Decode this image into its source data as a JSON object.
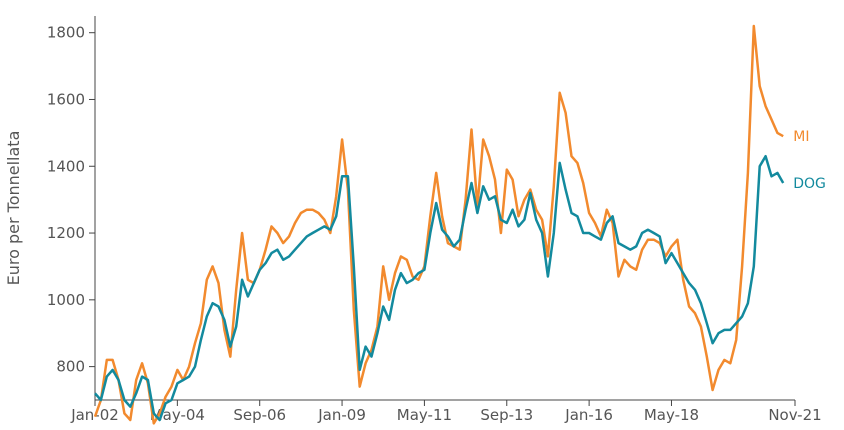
{
  "chart_data": {
    "type": "line",
    "title": "",
    "xlabel": "",
    "ylabel": "Euro per Tonnellata",
    "xlim": [
      "2002-01",
      "2021-11"
    ],
    "ylim": [
      700,
      1850
    ],
    "yticks": [
      800,
      1000,
      1200,
      1400,
      1600,
      1800
    ],
    "xticks": [
      {
        "date": "2002-01",
        "label": "Jan-02"
      },
      {
        "date": "2004-05",
        "label": "May-04"
      },
      {
        "date": "2006-09",
        "label": "Sep-06"
      },
      {
        "date": "2009-01",
        "label": "Jan-09"
      },
      {
        "date": "2011-05",
        "label": "May-11"
      },
      {
        "date": "2013-09",
        "label": "Sep-13"
      },
      {
        "date": "2016-01",
        "label": "Jan-16"
      },
      {
        "date": "2018-05",
        "label": "May-18"
      },
      {
        "date": "2021-11",
        "label": "Nov-21"
      }
    ],
    "grid": false,
    "legend": "direct labels at right end of lines",
    "colors": {
      "MI": "#F28A2E",
      "DOG": "#138A9E"
    },
    "series": [
      {
        "name": "MI",
        "color": "#F28A2E",
        "points": [
          [
            "2002-01",
            650
          ],
          [
            "2002-03",
            700
          ],
          [
            "2002-05",
            820
          ],
          [
            "2002-07",
            820
          ],
          [
            "2002-09",
            760
          ],
          [
            "2002-11",
            660
          ],
          [
            "2003-01",
            640
          ],
          [
            "2003-03",
            760
          ],
          [
            "2003-05",
            810
          ],
          [
            "2003-07",
            750
          ],
          [
            "2003-09",
            630
          ],
          [
            "2003-11",
            660
          ],
          [
            "2004-01",
            710
          ],
          [
            "2004-03",
            740
          ],
          [
            "2004-05",
            790
          ],
          [
            "2004-07",
            760
          ],
          [
            "2004-09",
            800
          ],
          [
            "2004-11",
            870
          ],
          [
            "2005-01",
            930
          ],
          [
            "2005-03",
            1060
          ],
          [
            "2005-05",
            1100
          ],
          [
            "2005-07",
            1050
          ],
          [
            "2005-09",
            910
          ],
          [
            "2005-11",
            830
          ],
          [
            "2006-01",
            1030
          ],
          [
            "2006-03",
            1200
          ],
          [
            "2006-05",
            1060
          ],
          [
            "2006-07",
            1050
          ],
          [
            "2006-09",
            1090
          ],
          [
            "2006-11",
            1150
          ],
          [
            "2007-01",
            1220
          ],
          [
            "2007-03",
            1200
          ],
          [
            "2007-05",
            1170
          ],
          [
            "2007-07",
            1190
          ],
          [
            "2007-09",
            1230
          ],
          [
            "2007-11",
            1260
          ],
          [
            "2008-01",
            1270
          ],
          [
            "2008-03",
            1270
          ],
          [
            "2008-05",
            1260
          ],
          [
            "2008-07",
            1240
          ],
          [
            "2008-09",
            1200
          ],
          [
            "2008-11",
            1310
          ],
          [
            "2009-01",
            1480
          ],
          [
            "2009-03",
            1330
          ],
          [
            "2009-05",
            970
          ],
          [
            "2009-07",
            740
          ],
          [
            "2009-09",
            810
          ],
          [
            "2009-11",
            850
          ],
          [
            "2010-01",
            920
          ],
          [
            "2010-03",
            1100
          ],
          [
            "2010-05",
            1000
          ],
          [
            "2010-07",
            1080
          ],
          [
            "2010-09",
            1130
          ],
          [
            "2010-11",
            1120
          ],
          [
            "2011-01",
            1070
          ],
          [
            "2011-03",
            1060
          ],
          [
            "2011-05",
            1100
          ],
          [
            "2011-07",
            1250
          ],
          [
            "2011-09",
            1380
          ],
          [
            "2011-11",
            1250
          ],
          [
            "2012-01",
            1170
          ],
          [
            "2012-03",
            1160
          ],
          [
            "2012-05",
            1150
          ],
          [
            "2012-07",
            1300
          ],
          [
            "2012-09",
            1510
          ],
          [
            "2012-11",
            1280
          ],
          [
            "2013-01",
            1480
          ],
          [
            "2013-03",
            1430
          ],
          [
            "2013-05",
            1360
          ],
          [
            "2013-07",
            1200
          ],
          [
            "2013-09",
            1390
          ],
          [
            "2013-11",
            1360
          ],
          [
            "2014-01",
            1250
          ],
          [
            "2014-03",
            1300
          ],
          [
            "2014-05",
            1330
          ],
          [
            "2014-07",
            1270
          ],
          [
            "2014-09",
            1240
          ],
          [
            "2014-11",
            1130
          ],
          [
            "2015-01",
            1340
          ],
          [
            "2015-03",
            1620
          ],
          [
            "2015-05",
            1560
          ],
          [
            "2015-07",
            1430
          ],
          [
            "2015-09",
            1410
          ],
          [
            "2015-11",
            1350
          ],
          [
            "2016-01",
            1260
          ],
          [
            "2016-03",
            1230
          ],
          [
            "2016-05",
            1190
          ],
          [
            "2016-07",
            1270
          ],
          [
            "2016-09",
            1230
          ],
          [
            "2016-11",
            1070
          ],
          [
            "2017-01",
            1120
          ],
          [
            "2017-03",
            1100
          ],
          [
            "2017-05",
            1090
          ],
          [
            "2017-07",
            1150
          ],
          [
            "2017-09",
            1180
          ],
          [
            "2017-11",
            1180
          ],
          [
            "2018-01",
            1170
          ],
          [
            "2018-03",
            1130
          ],
          [
            "2018-05",
            1160
          ],
          [
            "2018-07",
            1180
          ],
          [
            "2018-09",
            1060
          ],
          [
            "2018-11",
            980
          ],
          [
            "2019-01",
            960
          ],
          [
            "2019-03",
            920
          ],
          [
            "2019-05",
            830
          ],
          [
            "2019-07",
            730
          ],
          [
            "2019-09",
            790
          ],
          [
            "2019-11",
            820
          ],
          [
            "2020-01",
            810
          ],
          [
            "2020-03",
            880
          ],
          [
            "2020-05",
            1100
          ],
          [
            "2020-07",
            1380
          ],
          [
            "2020-09",
            1820
          ],
          [
            "2020-11",
            1640
          ],
          [
            "2021-01",
            1580
          ],
          [
            "2021-03",
            1540
          ],
          [
            "2021-05",
            1500
          ],
          [
            "2021-07",
            1490
          ]
        ]
      },
      {
        "name": "DOG",
        "color": "#138A9E",
        "points": [
          [
            "2002-01",
            720
          ],
          [
            "2002-03",
            700
          ],
          [
            "2002-05",
            770
          ],
          [
            "2002-07",
            790
          ],
          [
            "2002-09",
            760
          ],
          [
            "2002-11",
            700
          ],
          [
            "2003-01",
            680
          ],
          [
            "2003-03",
            720
          ],
          [
            "2003-05",
            770
          ],
          [
            "2003-07",
            760
          ],
          [
            "2003-09",
            660
          ],
          [
            "2003-11",
            640
          ],
          [
            "2004-01",
            690
          ],
          [
            "2004-03",
            700
          ],
          [
            "2004-05",
            750
          ],
          [
            "2004-07",
            760
          ],
          [
            "2004-09",
            770
          ],
          [
            "2004-11",
            800
          ],
          [
            "2005-01",
            880
          ],
          [
            "2005-03",
            950
          ],
          [
            "2005-05",
            990
          ],
          [
            "2005-07",
            980
          ],
          [
            "2005-09",
            940
          ],
          [
            "2005-11",
            860
          ],
          [
            "2006-01",
            920
          ],
          [
            "2006-03",
            1060
          ],
          [
            "2006-05",
            1010
          ],
          [
            "2006-07",
            1050
          ],
          [
            "2006-09",
            1090
          ],
          [
            "2006-11",
            1110
          ],
          [
            "2007-01",
            1140
          ],
          [
            "2007-03",
            1150
          ],
          [
            "2007-05",
            1120
          ],
          [
            "2007-07",
            1130
          ],
          [
            "2007-09",
            1150
          ],
          [
            "2007-11",
            1170
          ],
          [
            "2008-01",
            1190
          ],
          [
            "2008-03",
            1200
          ],
          [
            "2008-05",
            1210
          ],
          [
            "2008-07",
            1220
          ],
          [
            "2008-09",
            1210
          ],
          [
            "2008-11",
            1250
          ],
          [
            "2009-01",
            1370
          ],
          [
            "2009-03",
            1370
          ],
          [
            "2009-05",
            1100
          ],
          [
            "2009-07",
            790
          ],
          [
            "2009-09",
            860
          ],
          [
            "2009-11",
            830
          ],
          [
            "2010-01",
            900
          ],
          [
            "2010-03",
            980
          ],
          [
            "2010-05",
            940
          ],
          [
            "2010-07",
            1030
          ],
          [
            "2010-09",
            1080
          ],
          [
            "2010-11",
            1050
          ],
          [
            "2011-01",
            1060
          ],
          [
            "2011-03",
            1080
          ],
          [
            "2011-05",
            1090
          ],
          [
            "2011-07",
            1200
          ],
          [
            "2011-09",
            1290
          ],
          [
            "2011-11",
            1210
          ],
          [
            "2012-01",
            1190
          ],
          [
            "2012-03",
            1160
          ],
          [
            "2012-05",
            1180
          ],
          [
            "2012-07",
            1270
          ],
          [
            "2012-09",
            1350
          ],
          [
            "2012-11",
            1260
          ],
          [
            "2013-01",
            1340
          ],
          [
            "2013-03",
            1300
          ],
          [
            "2013-05",
            1310
          ],
          [
            "2013-07",
            1240
          ],
          [
            "2013-09",
            1230
          ],
          [
            "2013-11",
            1270
          ],
          [
            "2014-01",
            1220
          ],
          [
            "2014-03",
            1240
          ],
          [
            "2014-05",
            1320
          ],
          [
            "2014-07",
            1240
          ],
          [
            "2014-09",
            1200
          ],
          [
            "2014-11",
            1070
          ],
          [
            "2015-01",
            1200
          ],
          [
            "2015-03",
            1410
          ],
          [
            "2015-05",
            1330
          ],
          [
            "2015-07",
            1260
          ],
          [
            "2015-09",
            1250
          ],
          [
            "2015-11",
            1200
          ],
          [
            "2016-01",
            1200
          ],
          [
            "2016-03",
            1190
          ],
          [
            "2016-05",
            1180
          ],
          [
            "2016-07",
            1230
          ],
          [
            "2016-09",
            1250
          ],
          [
            "2016-11",
            1170
          ],
          [
            "2017-01",
            1160
          ],
          [
            "2017-03",
            1150
          ],
          [
            "2017-05",
            1160
          ],
          [
            "2017-07",
            1200
          ],
          [
            "2017-09",
            1210
          ],
          [
            "2017-11",
            1200
          ],
          [
            "2018-01",
            1190
          ],
          [
            "2018-03",
            1110
          ],
          [
            "2018-05",
            1140
          ],
          [
            "2018-07",
            1110
          ],
          [
            "2018-09",
            1080
          ],
          [
            "2018-11",
            1050
          ],
          [
            "2019-01",
            1030
          ],
          [
            "2019-03",
            990
          ],
          [
            "2019-05",
            930
          ],
          [
            "2019-07",
            870
          ],
          [
            "2019-09",
            900
          ],
          [
            "2019-11",
            910
          ],
          [
            "2020-01",
            910
          ],
          [
            "2020-03",
            930
          ],
          [
            "2020-05",
            950
          ],
          [
            "2020-07",
            990
          ],
          [
            "2020-09",
            1100
          ],
          [
            "2020-11",
            1400
          ],
          [
            "2021-01",
            1430
          ],
          [
            "2021-03",
            1370
          ],
          [
            "2021-05",
            1380
          ],
          [
            "2021-07",
            1350
          ]
        ]
      }
    ]
  }
}
